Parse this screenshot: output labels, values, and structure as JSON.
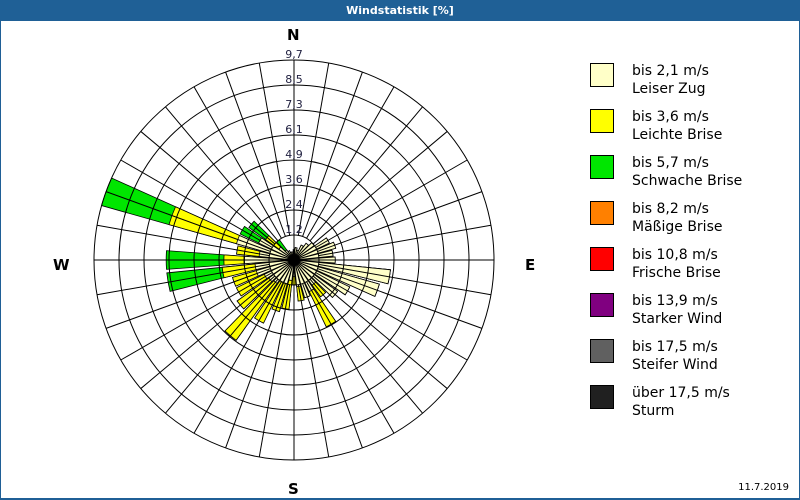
{
  "window": {
    "title": "Windstatistik [%]"
  },
  "compass": {
    "north": "N",
    "east": "E",
    "south": "S",
    "west": "W"
  },
  "date": "11.7.2019",
  "legend": [
    {
      "range": "bis 2,1 m/s",
      "name": "Leiser Zug",
      "color": "#ffffc8"
    },
    {
      "range": "bis 3,6 m/s",
      "name": "Leichte Brise",
      "color": "#ffff00"
    },
    {
      "range": "bis 5,7 m/s",
      "name": "Schwache Brise",
      "color": "#00e600"
    },
    {
      "range": "bis 8,2 m/s",
      "name": "Mäßige Brise",
      "color": "#ff8000"
    },
    {
      "range": "bis 10,8 m/s",
      "name": "Frische Brise",
      "color": "#ff0000"
    },
    {
      "range": "bis 13,9 m/s",
      "name": "Starker Wind",
      "color": "#800080"
    },
    {
      "range": "bis 17,5 m/s",
      "name": "Steifer Wind",
      "color": "#606060"
    },
    {
      "range": "über 17,5 m/s",
      "name": "Sturm",
      "color": "#202020"
    }
  ],
  "chart_data": {
    "type": "polar-stacked-bar",
    "title": "Windstatistik [%]",
    "radial_ticks": [
      "1,2",
      "2,4",
      "3,6",
      "4,9",
      "6,1",
      "7,3",
      "8,5",
      "9,7"
    ],
    "radial_max": 9.7,
    "direction_step_deg": 10,
    "series_names": [
      "bis 2,1 m/s",
      "bis 3,6 m/s",
      "bis 5,7 m/s"
    ],
    "directions_deg": [
      0,
      10,
      20,
      30,
      40,
      50,
      60,
      70,
      80,
      90,
      100,
      110,
      120,
      130,
      140,
      150,
      160,
      170,
      180,
      190,
      200,
      210,
      220,
      230,
      240,
      250,
      260,
      270,
      280,
      290,
      300,
      310,
      320,
      330,
      340,
      350
    ],
    "cumulative": [
      [
        0.5,
        0.5,
        0.5
      ],
      [
        0.6,
        0.6,
        0.6
      ],
      [
        0.5,
        0.5,
        0.5
      ],
      [
        0.8,
        0.8,
        0.8
      ],
      [
        1.0,
        1.0,
        1.0
      ],
      [
        1.2,
        1.2,
        1.2
      ],
      [
        1.9,
        1.9,
        1.9
      ],
      [
        2.1,
        2.1,
        2.1
      ],
      [
        1.9,
        1.9,
        1.9
      ],
      [
        2.0,
        2.0,
        2.0
      ],
      [
        4.7,
        4.7,
        4.7
      ],
      [
        4.3,
        4.3,
        4.3
      ],
      [
        3.0,
        3.0,
        3.0
      ],
      [
        2.6,
        2.6,
        2.6
      ],
      [
        1.5,
        2.2,
        2.2
      ],
      [
        1.7,
        3.6,
        3.6
      ],
      [
        1.9,
        1.9,
        1.9
      ],
      [
        1.3,
        2.0,
        2.0
      ],
      [
        0.8,
        1.2,
        1.2
      ],
      [
        1.0,
        2.4,
        2.4
      ],
      [
        1.2,
        2.6,
        2.6
      ],
      [
        1.2,
        3.4,
        3.4
      ],
      [
        1.4,
        4.8,
        4.8
      ],
      [
        1.5,
        3.4,
        3.4
      ],
      [
        1.6,
        3.1,
        3.1
      ],
      [
        1.9,
        3.1,
        3.1
      ],
      [
        1.9,
        3.5,
        6.2
      ],
      [
        2.4,
        3.4,
        6.2
      ],
      [
        1.7,
        2.8,
        2.8
      ],
      [
        2.9,
        6.3,
        9.7
      ],
      [
        1.9,
        1.9,
        2.9
      ],
      [
        0.9,
        1.7,
        2.7
      ],
      [
        0.6,
        0.6,
        1.2
      ],
      [
        0.5,
        0.5,
        0.5
      ],
      [
        0.4,
        0.4,
        0.4
      ],
      [
        0.4,
        0.4,
        0.4
      ]
    ]
  }
}
